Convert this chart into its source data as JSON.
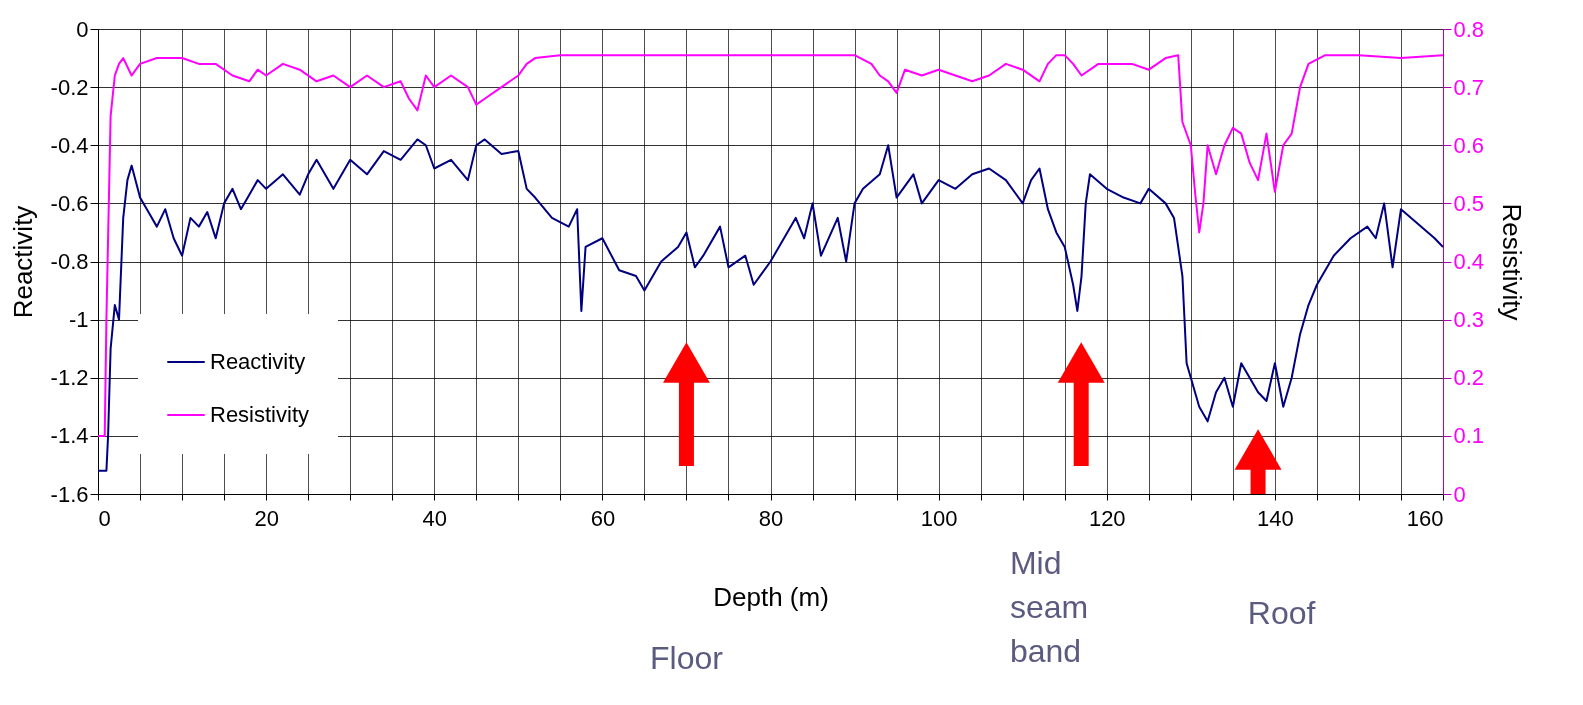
{
  "chart_data": {
    "type": "line",
    "xlabel": "Depth (m)",
    "ylabel": "Reactivity",
    "y2label": "Resistivity",
    "xlim": [
      0,
      160
    ],
    "xticks": [
      0,
      {
        "value": 5,
        "label": null
      },
      {
        "value": 10,
        "label": null
      },
      {
        "value": 15,
        "label": null
      },
      20,
      {
        "value": 25,
        "label": null
      },
      {
        "value": 30,
        "label": null
      },
      {
        "value": 35,
        "label": null
      },
      40,
      {
        "value": 45,
        "label": null
      },
      {
        "value": 50,
        "label": null
      },
      {
        "value": 55,
        "label": null
      },
      60,
      {
        "value": 65,
        "label": null
      },
      {
        "value": 70,
        "label": null
      },
      {
        "value": 75,
        "label": null
      },
      80,
      {
        "value": 85,
        "label": null
      },
      {
        "value": 90,
        "label": null
      },
      {
        "value": 95,
        "label": null
      },
      100,
      {
        "value": 105,
        "label": null
      },
      {
        "value": 110,
        "label": null
      },
      {
        "value": 115,
        "label": null
      },
      120,
      {
        "value": 125,
        "label": null
      },
      {
        "value": 130,
        "label": null
      },
      {
        "value": 135,
        "label": null
      },
      140,
      {
        "value": 145,
        "label": null
      },
      {
        "value": 150,
        "label": null
      },
      {
        "value": 155,
        "label": null
      },
      160
    ],
    "ylim": [
      -1.6,
      0
    ],
    "yticks": [
      -1.6,
      -1.4,
      -1.2,
      -1,
      -0.8,
      -0.6,
      -0.4,
      -0.2,
      0
    ],
    "y2lim": [
      0,
      0.8
    ],
    "y2ticks": [
      0,
      0.1,
      0.2,
      0.3,
      0.4,
      0.5,
      0.6,
      0.7,
      0.8
    ],
    "grid": true,
    "legend": "bottom left",
    "marker": "none",
    "line_style": "solid",
    "series": [
      {
        "name": "Reactivity",
        "color": "#000080",
        "x": [
          0,
          1,
          1.2,
          1.5,
          2,
          2.5,
          3,
          3.5,
          4,
          5,
          6,
          7,
          8,
          9,
          10,
          11,
          12,
          13,
          14,
          15,
          16,
          17,
          18,
          19,
          20,
          22,
          24,
          25,
          26,
          28,
          30,
          32,
          34,
          36,
          38,
          39,
          40,
          42,
          44,
          45,
          46,
          48,
          50,
          51,
          52,
          54,
          56,
          57,
          57.5,
          58,
          60,
          62,
          64,
          65,
          67,
          69,
          70,
          71,
          72,
          74,
          75,
          77,
          78,
          80,
          81,
          83,
          84,
          85,
          86,
          88,
          89,
          90,
          91,
          93,
          94,
          95,
          97,
          98,
          100,
          102,
          104,
          106,
          108,
          110,
          111,
          112,
          113,
          114,
          115,
          116,
          116.5,
          117,
          117.5,
          118,
          120,
          122,
          124,
          125,
          127,
          128,
          128.5,
          129,
          129.5,
          130,
          131,
          132,
          133,
          134,
          135,
          136,
          137,
          138,
          139,
          140,
          141,
          142,
          143,
          144,
          145,
          147,
          149,
          151,
          152,
          153,
          154,
          155,
          157,
          159,
          160
        ],
        "values": [
          -1.52,
          -1.52,
          -1.4,
          -1.1,
          -0.95,
          -1.0,
          -0.65,
          -0.52,
          -0.47,
          -0.58,
          -0.63,
          -0.68,
          -0.62,
          -0.72,
          -0.78,
          -0.65,
          -0.68,
          -0.63,
          -0.72,
          -0.6,
          -0.55,
          -0.62,
          -0.57,
          -0.52,
          -0.55,
          -0.5,
          -0.57,
          -0.5,
          -0.45,
          -0.55,
          -0.45,
          -0.5,
          -0.42,
          -0.45,
          -0.38,
          -0.4,
          -0.48,
          -0.45,
          -0.52,
          -0.4,
          -0.38,
          -0.43,
          -0.42,
          -0.55,
          -0.58,
          -0.65,
          -0.68,
          -0.62,
          -0.97,
          -0.75,
          -0.72,
          -0.83,
          -0.85,
          -0.9,
          -0.8,
          -0.75,
          -0.7,
          -0.82,
          -0.78,
          -0.68,
          -0.82,
          -0.78,
          -0.88,
          -0.8,
          -0.75,
          -0.65,
          -0.72,
          -0.6,
          -0.78,
          -0.65,
          -0.8,
          -0.6,
          -0.55,
          -0.5,
          -0.4,
          -0.58,
          -0.5,
          -0.6,
          -0.52,
          -0.55,
          -0.5,
          -0.48,
          -0.52,
          -0.6,
          -0.52,
          -0.48,
          -0.62,
          -0.7,
          -0.75,
          -0.88,
          -0.97,
          -0.85,
          -0.6,
          -0.5,
          -0.55,
          -0.58,
          -0.6,
          -0.55,
          -0.6,
          -0.65,
          -0.75,
          -0.85,
          -1.15,
          -1.2,
          -1.3,
          -1.35,
          -1.25,
          -1.2,
          -1.3,
          -1.15,
          -1.2,
          -1.25,
          -1.28,
          -1.15,
          -1.3,
          -1.2,
          -1.05,
          -0.95,
          -0.88,
          -0.78,
          -0.72,
          -0.68,
          -0.72,
          -0.6,
          -0.82,
          -0.62,
          -0.67,
          -0.72,
          -0.75
        ]
      },
      {
        "name": "Resistivity",
        "color": "#ff00ff",
        "axis": "y2",
        "x": [
          0,
          0.8,
          1,
          1.5,
          2,
          2.5,
          3,
          4,
          5,
          7,
          10,
          12,
          14,
          16,
          18,
          19,
          20,
          22,
          24,
          26,
          28,
          30,
          32,
          34,
          36,
          37,
          38,
          39,
          40,
          42,
          44,
          45,
          46,
          48,
          50,
          51,
          52,
          55,
          60,
          70,
          80,
          90,
          92,
          93,
          94,
          95,
          96,
          98,
          100,
          102,
          104,
          106,
          108,
          110,
          112,
          113,
          114,
          115,
          116,
          117,
          119,
          121,
          123,
          125,
          127,
          128.5,
          129,
          130,
          130.5,
          131,
          131.5,
          132,
          133,
          134,
          135,
          136,
          137,
          138,
          139,
          140,
          141,
          142,
          143,
          144,
          146,
          150,
          155,
          160
        ],
        "values": [
          0.1,
          0.1,
          0.3,
          0.65,
          0.72,
          0.74,
          0.75,
          0.72,
          0.74,
          0.75,
          0.75,
          0.74,
          0.74,
          0.72,
          0.71,
          0.73,
          0.72,
          0.74,
          0.73,
          0.71,
          0.72,
          0.7,
          0.72,
          0.7,
          0.71,
          0.68,
          0.66,
          0.72,
          0.7,
          0.72,
          0.7,
          0.67,
          0.68,
          0.7,
          0.72,
          0.74,
          0.75,
          0.755,
          0.755,
          0.755,
          0.755,
          0.755,
          0.74,
          0.72,
          0.71,
          0.69,
          0.73,
          0.72,
          0.73,
          0.72,
          0.71,
          0.72,
          0.74,
          0.73,
          0.71,
          0.74,
          0.755,
          0.755,
          0.74,
          0.72,
          0.74,
          0.74,
          0.74,
          0.73,
          0.75,
          0.755,
          0.64,
          0.6,
          0.52,
          0.45,
          0.5,
          0.6,
          0.55,
          0.6,
          0.63,
          0.62,
          0.57,
          0.54,
          0.62,
          0.52,
          0.6,
          0.62,
          0.7,
          0.74,
          0.755,
          0.755,
          0.75,
          0.755
        ]
      }
    ],
    "annotations": [
      "Floor",
      "Mid seam band",
      "Roof"
    ]
  }
}
